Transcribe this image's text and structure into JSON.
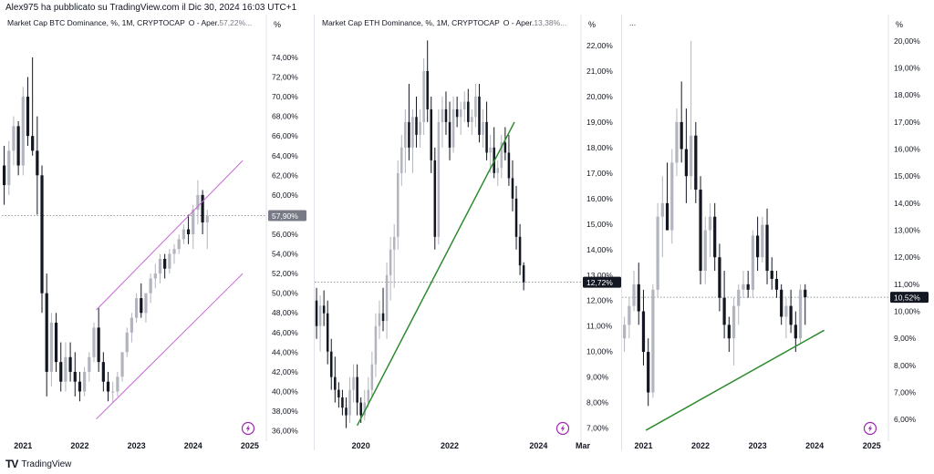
{
  "header": {
    "text": "Alex975 ha pubblicato su TradingView.com il Dic 30, 2024 16:03 UTC+1"
  },
  "footer": {
    "logo_text": "TV",
    "brand": "TradingView"
  },
  "colors": {
    "up": "#b2b5be",
    "down": "#131722",
    "trend_green": "#2e8b2e",
    "channel_purple": "#c86ad6",
    "price_tag_gray": "#787b86",
    "price_tag_black": "#131722",
    "tv_icon": "#9c27b0"
  },
  "chart_data": [
    {
      "type": "candlestick",
      "title": "Market Cap BTC Dominance, %, 1M, CRYPTOCAP",
      "ohlc_label": "O - Aper.",
      "ohlc_value": "57,22%",
      "ohlc_suffix": "...",
      "axis_unit": "%",
      "ylim": [
        35.5,
        76.5
      ],
      "yticks": [
        "36,00%",
        "38,00%",
        "40,00%",
        "42,00%",
        "44,00%",
        "46,00%",
        "48,00%",
        "50,00%",
        "52,00%",
        "54,00%",
        "56,00%",
        "58,00%",
        "60,00%",
        "62,00%",
        "64,00%",
        "66,00%",
        "68,00%",
        "70,00%",
        "72,00%",
        "74,00%"
      ],
      "ytick_values": [
        36,
        38,
        40,
        42,
        44,
        46,
        48,
        50,
        52,
        54,
        56,
        58,
        60,
        62,
        64,
        66,
        68,
        70,
        72,
        74
      ],
      "xticks": [
        "2021",
        "2022",
        "2023",
        "2024",
        "2025"
      ],
      "xtick_index": [
        4,
        16,
        28,
        40,
        52
      ],
      "last_price_label": "57,90%",
      "last_price": 57.9,
      "tag_style": "gray",
      "candles": [
        [
          63,
          65,
          59,
          61
        ],
        [
          61,
          65.5,
          60,
          64.5
        ],
        [
          64.5,
          68,
          63,
          67
        ],
        [
          67,
          67.5,
          62,
          63
        ],
        [
          63,
          71,
          62,
          70
        ],
        [
          70,
          72,
          65,
          66
        ],
        [
          66,
          74,
          64,
          64.5
        ],
        [
          64.5,
          68,
          58,
          62
        ],
        [
          62,
          63,
          48,
          50
        ],
        [
          50,
          52,
          39.5,
          42
        ],
        [
          42,
          48,
          40.5,
          47
        ],
        [
          47,
          48,
          42,
          43
        ],
        [
          43,
          45,
          40,
          41
        ],
        [
          41,
          45,
          40,
          43.5
        ],
        [
          43.5,
          45,
          41,
          42
        ],
        [
          42,
          44,
          39.5,
          41
        ],
        [
          41,
          42,
          39,
          40
        ],
        [
          40,
          42.5,
          39.5,
          42
        ],
        [
          42,
          44,
          41,
          43.5
        ],
        [
          43.5,
          47,
          43,
          46.5
        ],
        [
          46.5,
          48.5,
          42,
          43
        ],
        [
          43,
          44,
          40,
          41
        ],
        [
          41,
          42,
          39,
          40
        ],
        [
          40,
          41,
          38.8,
          40
        ],
        [
          40,
          42,
          39.5,
          41.5
        ],
        [
          41.5,
          44,
          41,
          44
        ],
        [
          44,
          46.5,
          43.5,
          46
        ],
        [
          46,
          48,
          45,
          47.5
        ],
        [
          47.5,
          50,
          47,
          49.5
        ],
        [
          49.5,
          51,
          47.5,
          48
        ],
        [
          48,
          50,
          47,
          50
        ],
        [
          50,
          52,
          49,
          51.5
        ],
        [
          51.5,
          53,
          50.5,
          52
        ],
        [
          52,
          54,
          51,
          53.5
        ],
        [
          53.5,
          54,
          51.5,
          52.5
        ],
        [
          52.5,
          54.5,
          52,
          54
        ],
        [
          54,
          55,
          53,
          54.5
        ],
        [
          54.5,
          56,
          54,
          55.5
        ],
        [
          55.5,
          57,
          55,
          56.5
        ],
        [
          56.5,
          58,
          55,
          56
        ],
        [
          56,
          59,
          54.5,
          58.5
        ],
        [
          58.5,
          61.5,
          57,
          60
        ],
        [
          60,
          60.5,
          56,
          57.2
        ],
        [
          57.2,
          58.5,
          54.5,
          57.9
        ]
      ],
      "lines": [
        {
          "role": "channel",
          "x1": 19.5,
          "y1": 48.3,
          "x2": 50.5,
          "y2": 63.5
        },
        {
          "role": "channel",
          "x1": 19.5,
          "y1": 37.2,
          "x2": 50.5,
          "y2": 52.0
        }
      ]
    },
    {
      "type": "candlestick",
      "title": "Market Cap ETH Dominance, %, 1M, CRYPTOCAP",
      "ohlc_label": "O - Aper.",
      "ohlc_value": "13,38%",
      "ohlc_suffix": "...",
      "axis_unit": "%",
      "ylim": [
        6.7,
        22.5
      ],
      "yticks": [
        "7,00%",
        "8,00%",
        "9,00%",
        "10,00%",
        "11,00%",
        "12,00%",
        "13,00%",
        "14,00%",
        "15,00%",
        "16,00%",
        "17,00%",
        "18,00%",
        "19,00%",
        "20,00%",
        "21,00%",
        "22,00%"
      ],
      "ytick_values": [
        7,
        8,
        9,
        10,
        11,
        12,
        13,
        14,
        15,
        16,
        17,
        18,
        19,
        20,
        21,
        22
      ],
      "xticks": [
        "2020",
        "2022",
        "2024",
        "Mar"
      ],
      "xtick_index": [
        12,
        36,
        60,
        72
      ],
      "last_price_label": "12,72%",
      "last_price": 12.72,
      "tag_style": "black",
      "candles": [
        [
          12.0,
          12.5,
          10.5,
          11.0
        ],
        [
          11.0,
          12.2,
          10.0,
          11.8
        ],
        [
          11.8,
          12.4,
          11.0,
          11.5
        ],
        [
          11.5,
          12.0,
          9.5,
          10.0
        ],
        [
          10.0,
          10.5,
          8.5,
          9.0
        ],
        [
          9.0,
          9.8,
          8.0,
          8.5
        ],
        [
          8.5,
          8.8,
          7.8,
          8.2
        ],
        [
          8.2,
          8.5,
          7.5,
          7.8
        ],
        [
          7.8,
          8.2,
          7.0,
          7.5
        ],
        [
          7.5,
          9.0,
          7.2,
          8.5
        ],
        [
          8.5,
          9.5,
          8.0,
          9.0
        ],
        [
          9.0,
          9.5,
          7.5,
          8.0
        ],
        [
          8.0,
          8.2,
          7.2,
          7.5
        ],
        [
          7.5,
          8.5,
          7.3,
          8.0
        ],
        [
          8.0,
          9.0,
          7.8,
          8.5
        ],
        [
          8.5,
          10.0,
          8.2,
          9.5
        ],
        [
          9.5,
          11.5,
          9.0,
          11.0
        ],
        [
          11.0,
          12.0,
          10.5,
          11.5
        ],
        [
          11.5,
          12.5,
          10.8,
          11.2
        ],
        [
          11.2,
          13.5,
          10.5,
          13.0
        ],
        [
          13.0,
          14.5,
          12.0,
          14.0
        ],
        [
          14.0,
          15.0,
          12.5,
          14.5
        ],
        [
          14.5,
          17.5,
          14.0,
          17.0
        ],
        [
          17.0,
          18.5,
          16.5,
          18.0
        ],
        [
          18.0,
          19.5,
          17.0,
          19.0
        ],
        [
          19.0,
          20.5,
          17.5,
          18.0
        ],
        [
          18.0,
          19.5,
          17.0,
          19.2
        ],
        [
          19.2,
          20.0,
          18.0,
          18.5
        ],
        [
          18.5,
          19.5,
          18.0,
          19.0
        ],
        [
          19.0,
          21.5,
          18.5,
          21.0
        ],
        [
          21.0,
          22.2,
          19.0,
          19.5
        ],
        [
          19.5,
          20.0,
          17.0,
          17.5
        ],
        [
          17.5,
          18.0,
          14.0,
          14.5
        ],
        [
          14.5,
          19.5,
          14.2,
          19.0
        ],
        [
          19.0,
          20.0,
          18.0,
          19.5
        ],
        [
          19.5,
          20.2,
          18.5,
          19.0
        ],
        [
          19.0,
          19.8,
          17.5,
          18.0
        ],
        [
          18.0,
          20.0,
          17.8,
          19.5
        ],
        [
          19.5,
          20.0,
          18.8,
          19.2
        ],
        [
          19.2,
          19.8,
          18.5,
          19.5
        ],
        [
          19.5,
          20.2,
          19.0,
          19.8
        ],
        [
          19.8,
          20.3,
          18.8,
          19.0
        ],
        [
          19.0,
          19.5,
          18.5,
          19.2
        ],
        [
          19.2,
          20.5,
          18.8,
          20.0
        ],
        [
          20.0,
          20.5,
          18.2,
          18.5
        ],
        [
          18.5,
          19.5,
          18.0,
          19.0
        ],
        [
          19.0,
          19.8,
          17.5,
          17.8
        ],
        [
          17.8,
          18.5,
          17.0,
          18.0
        ],
        [
          18.0,
          18.8,
          16.8,
          17.0
        ],
        [
          17.0,
          17.5,
          16.5,
          17.2
        ],
        [
          17.2,
          18.5,
          16.8,
          18.2
        ],
        [
          18.2,
          18.8,
          17.5,
          17.8
        ],
        [
          17.8,
          18.5,
          16.5,
          16.8
        ],
        [
          16.8,
          17.5,
          15.5,
          16.0
        ],
        [
          16.0,
          16.5,
          14.0,
          14.5
        ],
        [
          14.5,
          15.0,
          13.0,
          13.38
        ],
        [
          13.38,
          13.5,
          12.4,
          12.72
        ]
      ],
      "lines": [
        {
          "role": "trendline",
          "x1": 11,
          "y1": 7.1,
          "x2": 53.5,
          "y2": 19.0
        }
      ]
    },
    {
      "type": "candlestick",
      "title": "...",
      "ohlc_label": "",
      "ohlc_value": "",
      "ohlc_suffix": "",
      "axis_unit": "%",
      "ylim": [
        5.4,
        20.3
      ],
      "yticks": [
        "6,00%",
        "7,00%",
        "8,00%",
        "9,00%",
        "10,00%",
        "11,00%",
        "12,00%",
        "13,00%",
        "14,00%",
        "15,00%",
        "16,00%",
        "17,00%",
        "18,00%",
        "19,00%",
        "20,00%"
      ],
      "ytick_values": [
        6,
        7,
        8,
        9,
        10,
        11,
        12,
        13,
        14,
        15,
        16,
        17,
        18,
        19,
        20
      ],
      "xticks": [
        "2021",
        "2022",
        "2023",
        "2024",
        "2025"
      ],
      "xtick_index": [
        4,
        16,
        28,
        40,
        52
      ],
      "last_price_label": "10,52%",
      "last_price": 10.52,
      "tag_style": "black",
      "candles": [
        [
          9.0,
          9.8,
          8.5,
          9.5
        ],
        [
          9.5,
          10.5,
          9.0,
          10.2
        ],
        [
          10.2,
          11.5,
          10.0,
          11.0
        ],
        [
          11.0,
          11.8,
          9.5,
          10.0
        ],
        [
          10.0,
          10.8,
          8.0,
          8.5
        ],
        [
          8.5,
          9.0,
          6.5,
          7.0
        ],
        [
          7.0,
          11.0,
          6.8,
          10.8
        ],
        [
          10.8,
          14.0,
          10.5,
          13.5
        ],
        [
          13.5,
          15.0,
          12.0,
          14.0
        ],
        [
          14.0,
          15.5,
          13.0,
          13.0
        ],
        [
          13.0,
          16.0,
          12.5,
          15.5
        ],
        [
          15.5,
          17.5,
          15.0,
          17.0
        ],
        [
          17.0,
          18.5,
          15.5,
          16.0
        ],
        [
          16.0,
          17.5,
          14.0,
          15.0
        ],
        [
          15.0,
          20.0,
          14.5,
          16.5
        ],
        [
          16.5,
          17.0,
          14.0,
          14.5
        ],
        [
          14.5,
          15.0,
          11.0,
          11.5
        ],
        [
          11.5,
          13.5,
          11.0,
          13.0
        ],
        [
          13.0,
          14.0,
          12.0,
          13.5
        ],
        [
          13.5,
          14.0,
          11.5,
          12.0
        ],
        [
          12.0,
          12.5,
          10.0,
          10.5
        ],
        [
          10.5,
          11.5,
          9.0,
          9.5
        ],
        [
          9.5,
          9.8,
          8.5,
          9.0
        ],
        [
          9.0,
          10.5,
          8.0,
          10.2
        ],
        [
          10.2,
          11.0,
          9.5,
          10.8
        ],
        [
          10.8,
          11.5,
          10.5,
          11.0
        ],
        [
          11.0,
          11.5,
          10.5,
          10.8
        ],
        [
          10.8,
          13.0,
          10.5,
          12.8
        ],
        [
          12.8,
          13.5,
          11.5,
          12.0
        ],
        [
          12.0,
          13.5,
          11.8,
          13.2
        ],
        [
          13.2,
          13.8,
          11.0,
          11.5
        ],
        [
          11.5,
          12.0,
          10.8,
          11.2
        ],
        [
          11.2,
          11.5,
          10.5,
          10.8
        ],
        [
          10.8,
          11.0,
          9.5,
          9.8
        ],
        [
          9.8,
          10.5,
          9.0,
          10.2
        ],
        [
          10.2,
          10.8,
          9.2,
          9.5
        ],
        [
          9.5,
          10.0,
          8.5,
          9.0
        ],
        [
          9.0,
          11.0,
          8.8,
          10.8
        ],
        [
          10.8,
          11.0,
          9.5,
          10.52
        ]
      ],
      "lines": [
        {
          "role": "trendline",
          "x1": 4.5,
          "y1": 5.6,
          "x2": 42,
          "y2": 9.3
        }
      ]
    }
  ]
}
